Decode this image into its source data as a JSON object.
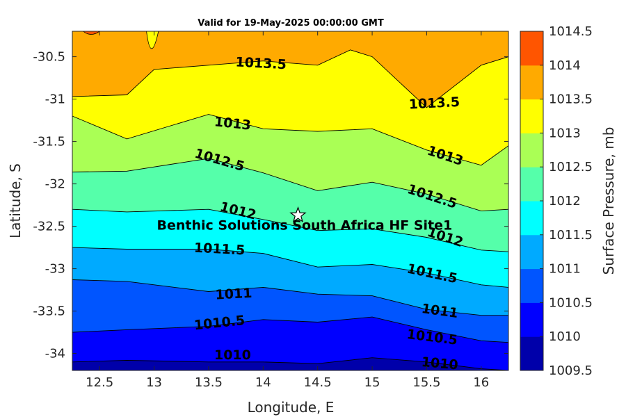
{
  "chart_data": {
    "type": "contour",
    "title": "Valid for 19-May-2025 00:00:00 GMT",
    "xlabel": "Longitude, E",
    "ylabel": "Latitude, S",
    "colorbar_label": "Surface Pressure, mb",
    "xlim": [
      12.25,
      16.25
    ],
    "ylim": [
      -34.2,
      -30.2
    ],
    "xticks": [
      12.5,
      13,
      13.5,
      14,
      14.5,
      15,
      15.5,
      16
    ],
    "xtick_labels": [
      "12.5",
      "13",
      "13.5",
      "14",
      "14.5",
      "15",
      "15.5",
      "16"
    ],
    "yticks": [
      -30.5,
      -31,
      -31.5,
      -32,
      -32.5,
      -33,
      -33.5,
      -34
    ],
    "ytick_labels": [
      "-30.5",
      "-31",
      "-31.5",
      "-32",
      "-32.5",
      "-33",
      "-33.5",
      "-34"
    ],
    "levels": [
      1009.5,
      1010,
      1010.5,
      1011,
      1011.5,
      1012,
      1012.5,
      1013,
      1013.5,
      1014,
      1014.5
    ],
    "level_labels": [
      "1009.5",
      "1010",
      "1010.5",
      "1011",
      "1011.5",
      "1012",
      "1012.5",
      "1013",
      "1013.5",
      "1014",
      "1014.5"
    ],
    "level_colors": [
      "#0000aa",
      "#0000ff",
      "#0055ff",
      "#00aaff",
      "#00ffff",
      "#55ffaa",
      "#aaff55",
      "#ffff00",
      "#ffaa00",
      "#ff5500",
      "#ff0000"
    ],
    "isobars": [
      {
        "level": 1010,
        "lon": [
          12.25,
          12.75,
          13.5,
          14,
          14.5,
          15,
          15.5,
          16,
          16.25
        ],
        "lat": [
          -34.1,
          -34.08,
          -34.1,
          -34.1,
          -34.12,
          -34.05,
          -34.1,
          -34.18,
          -34.2
        ]
      },
      {
        "level": 1010.5,
        "lon": [
          12.25,
          12.75,
          13.5,
          14,
          14.5,
          15,
          15.5,
          16,
          16.25
        ],
        "lat": [
          -33.75,
          -33.72,
          -33.68,
          -33.6,
          -33.63,
          -33.57,
          -33.72,
          -33.85,
          -33.87
        ]
      },
      {
        "level": 1011,
        "lon": [
          12.25,
          12.75,
          13.5,
          14,
          14.5,
          15,
          15.5,
          16,
          16.25
        ],
        "lat": [
          -33.13,
          -33.15,
          -33.27,
          -33.22,
          -33.3,
          -33.32,
          -33.48,
          -33.55,
          -33.55
        ]
      },
      {
        "level": 1011.5,
        "lon": [
          12.25,
          12.75,
          13.5,
          14,
          14.5,
          15,
          15.5,
          16,
          16.25
        ],
        "lat": [
          -32.75,
          -32.77,
          -32.77,
          -32.82,
          -32.98,
          -32.95,
          -33.05,
          -33.19,
          -33.22
        ]
      },
      {
        "level": 1012,
        "lon": [
          12.25,
          12.75,
          13.5,
          14,
          14.5,
          15,
          15.5,
          16,
          16.25
        ],
        "lat": [
          -32.3,
          -32.33,
          -32.3,
          -32.42,
          -32.55,
          -32.53,
          -32.63,
          -32.78,
          -32.8
        ]
      },
      {
        "level": 1012.5,
        "lon": [
          12.25,
          12.75,
          13.5,
          14,
          14.5,
          15,
          15.5,
          16,
          16.25
        ],
        "lat": [
          -31.86,
          -31.85,
          -31.7,
          -31.87,
          -32.08,
          -31.98,
          -32.12,
          -32.32,
          -32.3
        ]
      },
      {
        "level": 1013,
        "lon": [
          12.25,
          12.75,
          13.5,
          14,
          14.5,
          15,
          15.5,
          16,
          16.25
        ],
        "lat": [
          -31.2,
          -31.47,
          -31.18,
          -31.35,
          -31.38,
          -31.35,
          -31.6,
          -31.78,
          -31.55
        ]
      },
      {
        "level": 1013.5,
        "lon": [
          12.25,
          12.75,
          13,
          13.5,
          14,
          14.5,
          14.8,
          15,
          15.5,
          16,
          16.25
        ],
        "lat": [
          -30.97,
          -30.95,
          -30.65,
          -30.6,
          -30.55,
          -30.6,
          -30.42,
          -30.5,
          -31.1,
          -30.6,
          -30.5
        ]
      }
    ],
    "isobar_labels": [
      {
        "text": "1013.5",
        "lon": 13.98,
        "lat": -30.58,
        "angle": 3
      },
      {
        "text": "1013.5",
        "lon": 15.57,
        "lat": -31.05,
        "angle": -3
      },
      {
        "text": "1013",
        "lon": 13.72,
        "lat": -31.29,
        "angle": 6
      },
      {
        "text": "1013",
        "lon": 15.67,
        "lat": -31.67,
        "angle": 18
      },
      {
        "text": "1012.5",
        "lon": 13.6,
        "lat": -31.72,
        "angle": 16
      },
      {
        "text": "1012.5",
        "lon": 15.55,
        "lat": -32.15,
        "angle": 18
      },
      {
        "text": "1012",
        "lon": 13.77,
        "lat": -32.32,
        "angle": 14
      },
      {
        "text": "1012",
        "lon": 15.67,
        "lat": -32.63,
        "angle": 18
      },
      {
        "text": "1011.5",
        "lon": 13.6,
        "lat": -32.77,
        "angle": 3
      },
      {
        "text": "1011.5",
        "lon": 15.55,
        "lat": -33.06,
        "angle": 12
      },
      {
        "text": "1011",
        "lon": 13.73,
        "lat": -33.3,
        "angle": -3
      },
      {
        "text": "1011",
        "lon": 15.62,
        "lat": -33.5,
        "angle": 8
      },
      {
        "text": "1010.5",
        "lon": 13.6,
        "lat": -33.64,
        "angle": -6
      },
      {
        "text": "1010.5",
        "lon": 15.55,
        "lat": -33.81,
        "angle": 7
      },
      {
        "text": "1010",
        "lon": 13.72,
        "lat": -34.02,
        "angle": 0
      },
      {
        "text": "1010",
        "lon": 15.62,
        "lat": -34.12,
        "angle": 5
      }
    ],
    "site": {
      "name": "Benthic Solutions South Africa HF Site1",
      "lon": 14.32,
      "lat": -32.37
    }
  }
}
